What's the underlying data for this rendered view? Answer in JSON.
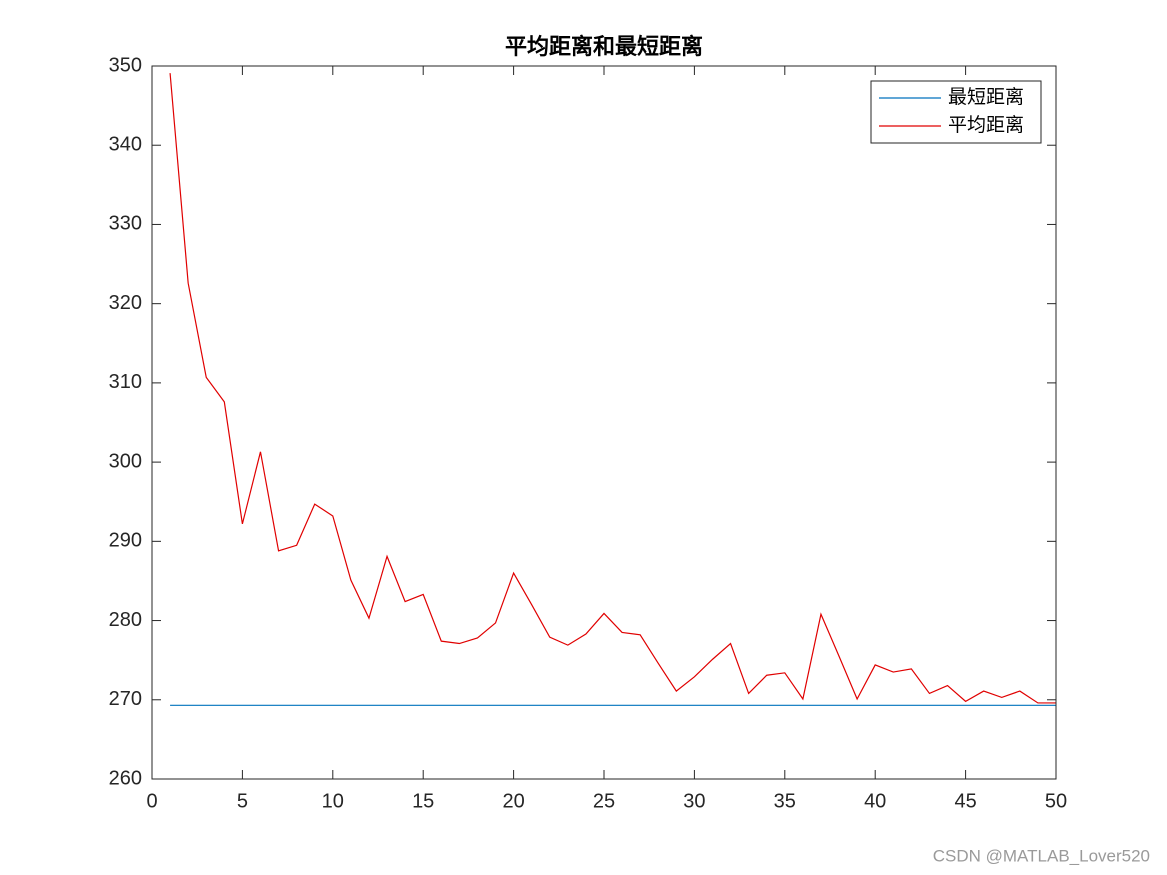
{
  "chart_data": {
    "type": "line",
    "title": "平均距离和最短距离",
    "x": [
      1,
      2,
      3,
      4,
      5,
      6,
      7,
      8,
      9,
      10,
      11,
      12,
      13,
      14,
      15,
      16,
      17,
      18,
      19,
      20,
      21,
      22,
      23,
      24,
      25,
      26,
      27,
      28,
      29,
      30,
      31,
      32,
      33,
      34,
      35,
      36,
      37,
      38,
      39,
      40,
      41,
      42,
      43,
      44,
      45,
      46,
      47,
      48,
      49,
      50
    ],
    "series": [
      {
        "name": "最短距离",
        "color": "#0072bd",
        "values": [
          269.3,
          269.3,
          269.3,
          269.3,
          269.3,
          269.3,
          269.3,
          269.3,
          269.3,
          269.3,
          269.3,
          269.3,
          269.3,
          269.3,
          269.3,
          269.3,
          269.3,
          269.3,
          269.3,
          269.3,
          269.3,
          269.3,
          269.3,
          269.3,
          269.3,
          269.3,
          269.3,
          269.3,
          269.3,
          269.3,
          269.3,
          269.3,
          269.3,
          269.3,
          269.3,
          269.3,
          269.3,
          269.3,
          269.3,
          269.3,
          269.3,
          269.3,
          269.3,
          269.3,
          269.3,
          269.3,
          269.3,
          269.3,
          269.3,
          269.3
        ]
      },
      {
        "name": "平均距离",
        "color": "#e00000",
        "values": [
          349.1,
          322.6,
          310.7,
          307.6,
          292.2,
          301.3,
          288.8,
          289.5,
          294.7,
          293.2,
          285.1,
          280.3,
          288.1,
          282.4,
          283.3,
          277.4,
          277.1,
          277.8,
          279.7,
          286.0,
          282.0,
          277.9,
          276.9,
          278.3,
          280.9,
          278.5,
          278.2,
          274.6,
          271.1,
          272.9,
          275.1,
          277.1,
          270.8,
          273.1,
          273.4,
          270.1,
          280.8,
          275.5,
          270.1,
          274.4,
          273.5,
          273.9,
          270.8,
          271.8,
          269.8,
          271.1,
          270.3,
          271.1,
          269.6,
          269.6
        ]
      }
    ],
    "xlim": [
      0,
      50
    ],
    "xticks": [
      0,
      5,
      10,
      15,
      20,
      25,
      30,
      35,
      40,
      45,
      50
    ],
    "ylim": [
      260,
      350
    ],
    "yticks": [
      260,
      270,
      280,
      290,
      300,
      310,
      320,
      330,
      340,
      350
    ],
    "grid": false,
    "legend": "top-right",
    "watermark": "CSDN @MATLAB_Lover520"
  }
}
